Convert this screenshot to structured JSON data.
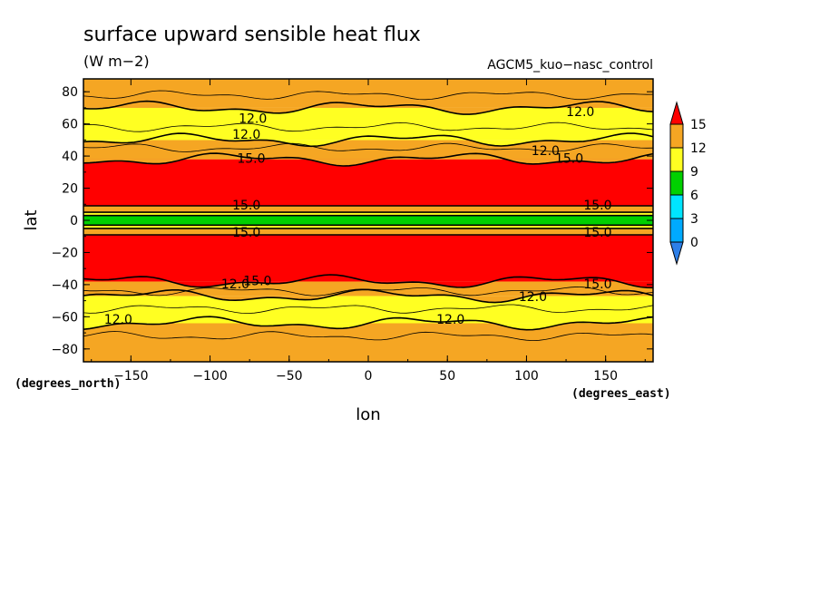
{
  "chart_data": {
    "type": "heatmap",
    "title": "surface upward sensible heat flux",
    "units": "(W m−2)",
    "model": "AGCM5_kuo−nasc_control",
    "xlabel": "lon",
    "ylabel": "lat",
    "x_units": "(degrees_east)",
    "y_units": "(degrees_north)",
    "xlim": [
      -180,
      180
    ],
    "ylim": [
      -88,
      88
    ],
    "x_ticks": [
      -150,
      -100,
      -50,
      0,
      50,
      100,
      150
    ],
    "x_tick_labels": [
      "−150",
      "−100",
      "−50",
      "0",
      "50",
      "100",
      "150"
    ],
    "y_ticks": [
      -80,
      -60,
      -40,
      -20,
      0,
      20,
      40,
      60,
      80
    ],
    "y_tick_labels": [
      "−80",
      "−60",
      "−40",
      "−20",
      "0",
      "20",
      "40",
      "60",
      "80"
    ],
    "contour_levels": [
      0,
      3,
      6,
      9,
      12,
      15
    ],
    "colorbar_labels": [
      "15",
      "12",
      "9",
      "6",
      "3",
      "0"
    ],
    "colors": {
      "below_0": "#2d7fe8",
      "0_3": "#00aaff",
      "3_6": "#00e5ff",
      "6_9": "#00d000",
      "9_12": "#ffff22",
      "12_15": "#f5a623",
      "above_15": "#ff0000"
    },
    "latitude_bands": [
      {
        "lat_min": -88,
        "lat_max": -64,
        "range": "12_15"
      },
      {
        "lat_min": -64,
        "lat_max": -47,
        "range": "9_12"
      },
      {
        "lat_min": -47,
        "lat_max": -38,
        "range": "12_15"
      },
      {
        "lat_min": -38,
        "lat_max": -9,
        "range": "above_15"
      },
      {
        "lat_min": -9,
        "lat_max": -5,
        "range": "12_15"
      },
      {
        "lat_min": -5,
        "lat_max": -3,
        "range": "9_12"
      },
      {
        "lat_min": -3,
        "lat_max": 3,
        "range": "6_9"
      },
      {
        "lat_min": 3,
        "lat_max": 5,
        "range": "9_12"
      },
      {
        "lat_min": 5,
        "lat_max": 9,
        "range": "12_15"
      },
      {
        "lat_min": 9,
        "lat_max": 38,
        "range": "above_15"
      },
      {
        "lat_min": 38,
        "lat_max": 50,
        "range": "12_15"
      },
      {
        "lat_min": 50,
        "lat_max": 70,
        "range": "9_12"
      },
      {
        "lat_min": 70,
        "lat_max": 88,
        "range": "12_15"
      }
    ],
    "contour_labels": [
      {
        "text": "12.0",
        "lon": -73,
        "lat": 63
      },
      {
        "text": "12.0",
        "lon": -77,
        "lat": 53
      },
      {
        "text": "12.0",
        "lon": 134,
        "lat": 67
      },
      {
        "text": "12.0",
        "lon": 112,
        "lat": 43
      },
      {
        "text": "15.0",
        "lon": -74,
        "lat": 38
      },
      {
        "text": "15.0",
        "lon": 127,
        "lat": 38
      },
      {
        "text": "15.0",
        "lon": -77,
        "lat": 9
      },
      {
        "text": "15.0",
        "lon": 145,
        "lat": 9
      },
      {
        "text": "15.0",
        "lon": -77,
        "lat": -8
      },
      {
        "text": "15.0",
        "lon": 145,
        "lat": -8
      },
      {
        "text": "12.0",
        "lon": -84,
        "lat": -40
      },
      {
        "text": "15.0",
        "lon": -70,
        "lat": -38
      },
      {
        "text": "12.0",
        "lon": 104,
        "lat": -48
      },
      {
        "text": "15.0",
        "lon": 145,
        "lat": -40
      },
      {
        "text": "12.0",
        "lon": -158,
        "lat": -62
      },
      {
        "text": "12.0",
        "lon": 52,
        "lat": -62
      }
    ]
  }
}
